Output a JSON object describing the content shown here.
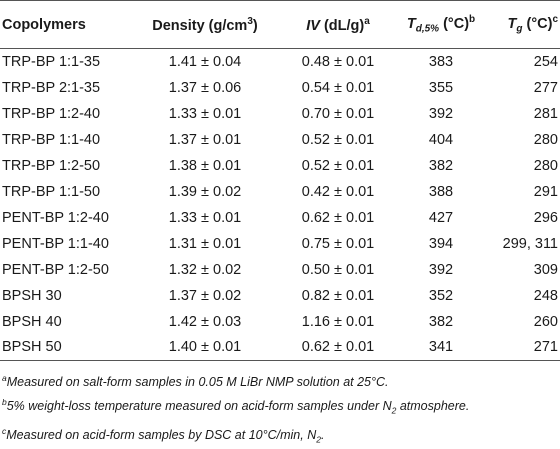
{
  "headers": {
    "copolymers": "Copolymers",
    "density_main": "Density (g/cm",
    "density_exp": "3",
    "density_close": ")",
    "iv_symbol": "IV",
    "iv_units": " (dL/g)",
    "iv_note": "a",
    "td_symbol": "T",
    "td_sub": "d,5%",
    "td_units": " (°C)",
    "td_note": "b",
    "tg_symbol": "T",
    "tg_sub": "g",
    "tg_units": " (°C)",
    "tg_note": "c"
  },
  "rows": [
    {
      "name": "TRP-BP 1:1-35",
      "density": "1.41 ± 0.04",
      "iv": "0.48 ± 0.01",
      "td": "383",
      "tg": "254"
    },
    {
      "name": "TRP-BP 2:1-35",
      "density": "1.37 ± 0.06",
      "iv": "0.54 ± 0.01",
      "td": "355",
      "tg": "277"
    },
    {
      "name": "TRP-BP 1:2-40",
      "density": "1.33 ± 0.01",
      "iv": "0.70 ± 0.01",
      "td": "392",
      "tg": "281"
    },
    {
      "name": "TRP-BP 1:1-40",
      "density": "1.37 ± 0.01",
      "iv": "0.52 ± 0.01",
      "td": "404",
      "tg": "280"
    },
    {
      "name": "TRP-BP 1:2-50",
      "density": "1.38 ± 0.01",
      "iv": "0.52 ± 0.01",
      "td": "382",
      "tg": "280"
    },
    {
      "name": "TRP-BP 1:1-50",
      "density": "1.39 ± 0.02",
      "iv": "0.42 ± 0.01",
      "td": "388",
      "tg": "291"
    },
    {
      "name": "PENT-BP 1:2-40",
      "density": "1.33 ± 0.01",
      "iv": "0.62 ± 0.01",
      "td": "427",
      "tg": "296"
    },
    {
      "name": "PENT-BP 1:1-40",
      "density": "1.31 ± 0.01",
      "iv": "0.75 ± 0.01",
      "td": "394",
      "tg": "299, 311"
    },
    {
      "name": "PENT-BP 1:2-50",
      "density": "1.32 ± 0.02",
      "iv": "0.50 ± 0.01",
      "td": "392",
      "tg": "309"
    },
    {
      "name": "BPSH 30",
      "density": "1.37 ± 0.02",
      "iv": "0.82 ± 0.01",
      "td": "352",
      "tg": "248"
    },
    {
      "name": "BPSH 40",
      "density": "1.42 ± 0.03",
      "iv": "1.16 ± 0.01",
      "td": "382",
      "tg": "260"
    },
    {
      "name": "BPSH 50",
      "density": "1.40 ± 0.01",
      "iv": "0.62 ± 0.01",
      "td": "341",
      "tg": "271"
    }
  ],
  "footnotes": {
    "a_mark": "a",
    "a_text": "Measured on salt-form samples in 0.05 M LiBr NMP solution at 25°C.",
    "b_mark": "b",
    "b_text_1": "5% weight-loss temperature measured on acid-form samples under N",
    "b_sub": "2",
    "b_text_2": " atmosphere.",
    "c_mark": "c",
    "c_text_1": "Measured on acid-form samples by DSC at 10°C/min, N",
    "c_sub": "2",
    "c_text_2": "."
  }
}
